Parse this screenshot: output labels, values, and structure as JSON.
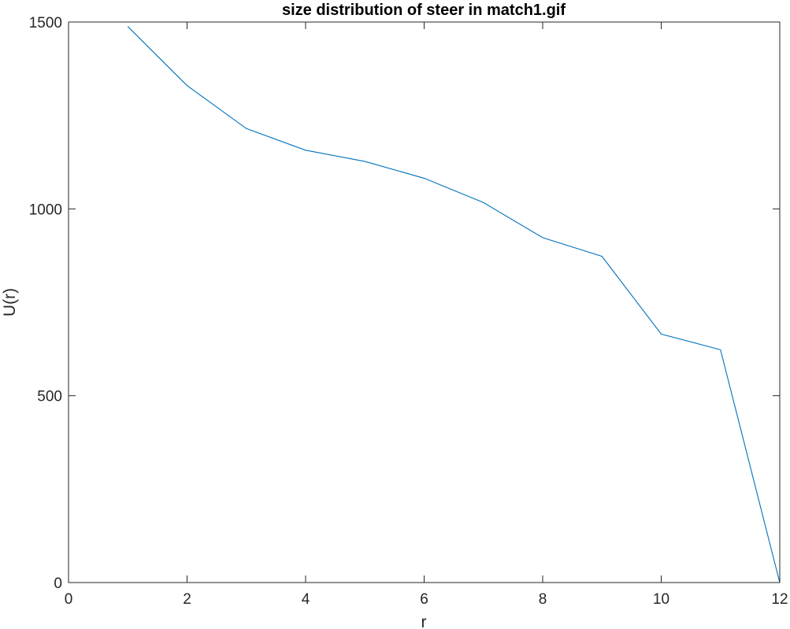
{
  "chart_data": {
    "type": "line",
    "title": "size distribution of steer in match1.gif",
    "xlabel": "r",
    "ylabel": "U(r)",
    "xlim": [
      0,
      12
    ],
    "ylim": [
      0,
      1500
    ],
    "xticks": [
      0,
      2,
      4,
      6,
      8,
      10,
      12
    ],
    "yticks": [
      0,
      500,
      1000,
      1500
    ],
    "grid": false,
    "box": true,
    "series": [
      {
        "color": "#0072BD",
        "x": [
          1,
          2,
          3,
          4,
          5,
          6,
          7,
          8,
          9,
          10,
          11,
          12
        ],
        "y": [
          1488,
          1330,
          1215,
          1157,
          1127,
          1082,
          1017,
          923,
          873,
          665,
          623,
          0
        ]
      }
    ]
  }
}
